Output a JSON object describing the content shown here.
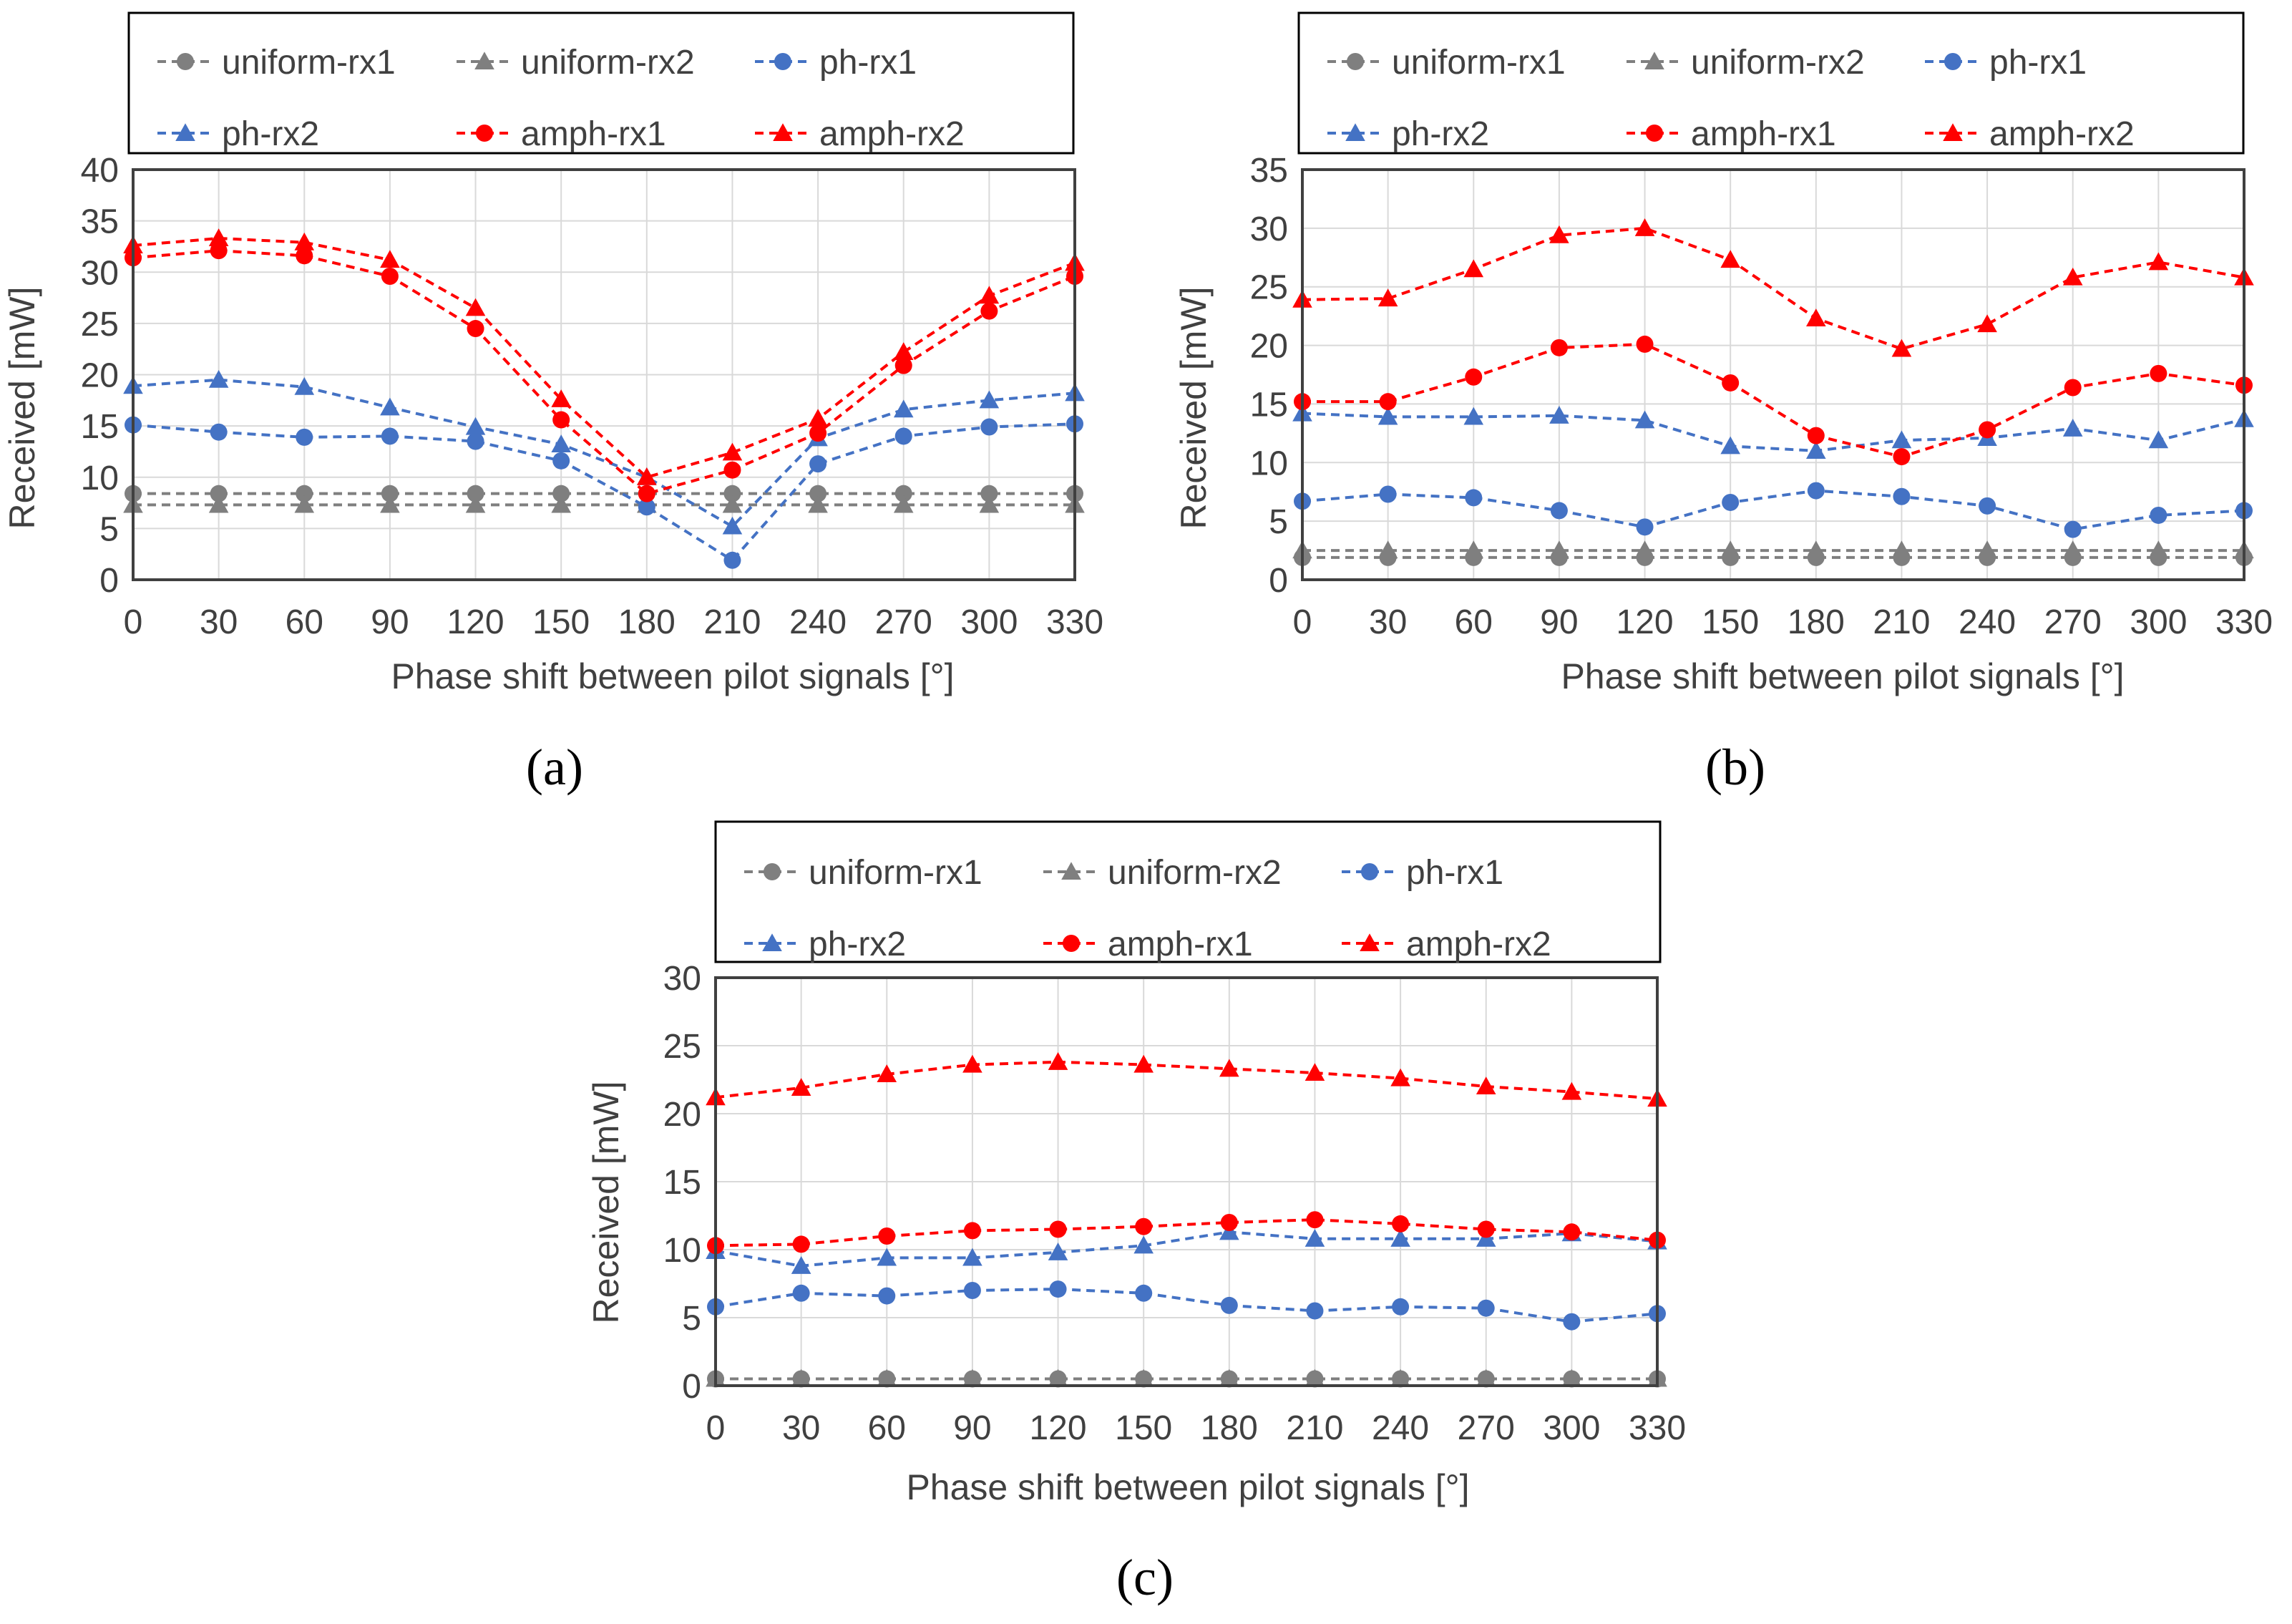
{
  "colors": {
    "uniform_rx1": "#7f7f7f",
    "uniform_rx2": "#7f7f7f",
    "ph_rx1": "#4472c4",
    "ph_rx2": "#4472c4",
    "amph_rx1": "#ff0000",
    "amph_rx2": "#ff0000",
    "grid": "#d9d9d9",
    "frame": "#404040",
    "text": "#404040"
  },
  "chart_data": [
    {
      "type": "line",
      "panel_label": "(a)",
      "title": "",
      "xlabel": "Phase shift between pilot signals [°]",
      "ylabel": "Received [mW]",
      "ylim": [
        0,
        40
      ],
      "yticks": [
        "0",
        "5",
        "10",
        "15",
        "20",
        "25",
        "30",
        "35",
        "40"
      ],
      "categories": [
        "0",
        "30",
        "60",
        "90",
        "120",
        "150",
        "180",
        "210",
        "240",
        "270",
        "300",
        "330"
      ],
      "legend": [
        "uniform-rx1",
        "uniform-rx2",
        "ph-rx1",
        "ph-rx2",
        "amph-rx1",
        "amph-rx2"
      ],
      "series": [
        {
          "name": "uniform-rx1",
          "marker": "circle",
          "values": [
            8.4,
            8.4,
            8.4,
            8.4,
            8.4,
            8.4,
            8.4,
            8.4,
            8.4,
            8.4,
            8.4,
            8.4
          ]
        },
        {
          "name": "uniform-rx2",
          "marker": "triangle",
          "values": [
            7.3,
            7.3,
            7.3,
            7.3,
            7.3,
            7.3,
            7.3,
            7.3,
            7.3,
            7.3,
            7.3,
            7.3
          ]
        },
        {
          "name": "ph-rx1",
          "marker": "circle",
          "values": [
            15.1,
            14.4,
            13.9,
            14.0,
            13.5,
            11.6,
            7.1,
            1.9,
            11.3,
            14.0,
            14.9,
            15.2
          ]
        },
        {
          "name": "ph-rx2",
          "marker": "triangle",
          "values": [
            18.9,
            19.5,
            18.8,
            16.8,
            14.9,
            13.2,
            10.0,
            5.2,
            13.8,
            16.6,
            17.5,
            18.2
          ]
        },
        {
          "name": "amph-rx1",
          "marker": "circle",
          "values": [
            31.4,
            32.1,
            31.6,
            29.6,
            24.5,
            15.6,
            8.4,
            10.7,
            14.3,
            20.9,
            26.2,
            29.6
          ]
        },
        {
          "name": "amph-rx2",
          "marker": "triangle",
          "values": [
            32.6,
            33.3,
            32.9,
            31.2,
            26.5,
            17.6,
            10.0,
            12.4,
            15.7,
            22.2,
            27.7,
            30.9
          ]
        }
      ]
    },
    {
      "type": "line",
      "panel_label": "(b)",
      "title": "",
      "xlabel": "Phase shift between pilot signals [°]",
      "ylabel": "Received [mW]",
      "ylim": [
        0,
        35
      ],
      "yticks": [
        "0",
        "5",
        "10",
        "15",
        "20",
        "25",
        "30",
        "35"
      ],
      "categories": [
        "0",
        "30",
        "60",
        "90",
        "120",
        "150",
        "180",
        "210",
        "240",
        "270",
        "300",
        "330"
      ],
      "legend": [
        "uniform-rx1",
        "uniform-rx2",
        "ph-rx1",
        "ph-rx2",
        "amph-rx1",
        "amph-rx2"
      ],
      "series": [
        {
          "name": "uniform-rx1",
          "marker": "circle",
          "values": [
            1.9,
            1.9,
            1.9,
            1.9,
            1.9,
            1.9,
            1.9,
            1.9,
            1.9,
            1.9,
            1.9,
            1.9
          ]
        },
        {
          "name": "uniform-rx2",
          "marker": "triangle",
          "values": [
            2.5,
            2.5,
            2.5,
            2.5,
            2.5,
            2.5,
            2.5,
            2.5,
            2.5,
            2.5,
            2.5,
            2.5
          ]
        },
        {
          "name": "ph-rx1",
          "marker": "circle",
          "values": [
            6.7,
            7.3,
            7.0,
            5.9,
            4.5,
            6.6,
            7.6,
            7.1,
            6.3,
            4.3,
            5.5,
            5.9
          ]
        },
        {
          "name": "ph-rx2",
          "marker": "triangle",
          "values": [
            14.2,
            13.9,
            13.9,
            14.0,
            13.6,
            11.4,
            11.0,
            11.9,
            12.1,
            12.9,
            11.9,
            13.7
          ]
        },
        {
          "name": "amph-rx1",
          "marker": "circle",
          "values": [
            15.2,
            15.2,
            17.3,
            19.8,
            20.1,
            16.8,
            12.3,
            10.5,
            12.8,
            16.4,
            17.6,
            16.6
          ]
        },
        {
          "name": "amph-rx2",
          "marker": "triangle",
          "values": [
            23.9,
            24.0,
            26.5,
            29.4,
            30.0,
            27.3,
            22.3,
            19.7,
            21.8,
            25.8,
            27.1,
            25.8
          ]
        }
      ]
    },
    {
      "type": "line",
      "panel_label": "(c)",
      "title": "",
      "xlabel": "Phase shift between pilot signals [°]",
      "ylabel": "Received [mW]",
      "ylim": [
        0,
        30
      ],
      "yticks": [
        "0",
        "5",
        "10",
        "15",
        "20",
        "25",
        "30"
      ],
      "categories": [
        "0",
        "30",
        "60",
        "90",
        "120",
        "150",
        "180",
        "210",
        "240",
        "270",
        "300",
        "330"
      ],
      "legend": [
        "uniform-rx1",
        "uniform-rx2",
        "ph-rx1",
        "ph-rx2",
        "amph-rx1",
        "amph-rx2"
      ],
      "series": [
        {
          "name": "uniform-rx1",
          "marker": "circle",
          "values": [
            0.5,
            0.5,
            0.5,
            0.5,
            0.5,
            0.5,
            0.5,
            0.5,
            0.5,
            0.5,
            0.5,
            0.5
          ]
        },
        {
          "name": "uniform-rx2",
          "marker": "triangle",
          "values": [
            0.5,
            0.5,
            0.5,
            0.5,
            0.5,
            0.5,
            0.5,
            0.5,
            0.5,
            0.5,
            0.5,
            0.5
          ]
        },
        {
          "name": "ph-rx1",
          "marker": "circle",
          "values": [
            5.8,
            6.8,
            6.6,
            7.0,
            7.1,
            6.8,
            5.9,
            5.5,
            5.8,
            5.7,
            4.7,
            5.3
          ]
        },
        {
          "name": "ph-rx2",
          "marker": "triangle",
          "values": [
            9.9,
            8.8,
            9.4,
            9.4,
            9.8,
            10.3,
            11.3,
            10.8,
            10.8,
            10.8,
            11.2,
            10.6
          ]
        },
        {
          "name": "amph-rx1",
          "marker": "circle",
          "values": [
            10.3,
            10.4,
            11.0,
            11.4,
            11.5,
            11.7,
            12.0,
            12.2,
            11.9,
            11.5,
            11.3,
            10.7
          ]
        },
        {
          "name": "amph-rx2",
          "marker": "triangle",
          "values": [
            21.2,
            21.9,
            22.9,
            23.6,
            23.8,
            23.6,
            23.3,
            23.0,
            22.6,
            22.0,
            21.6,
            21.1
          ]
        }
      ]
    }
  ]
}
